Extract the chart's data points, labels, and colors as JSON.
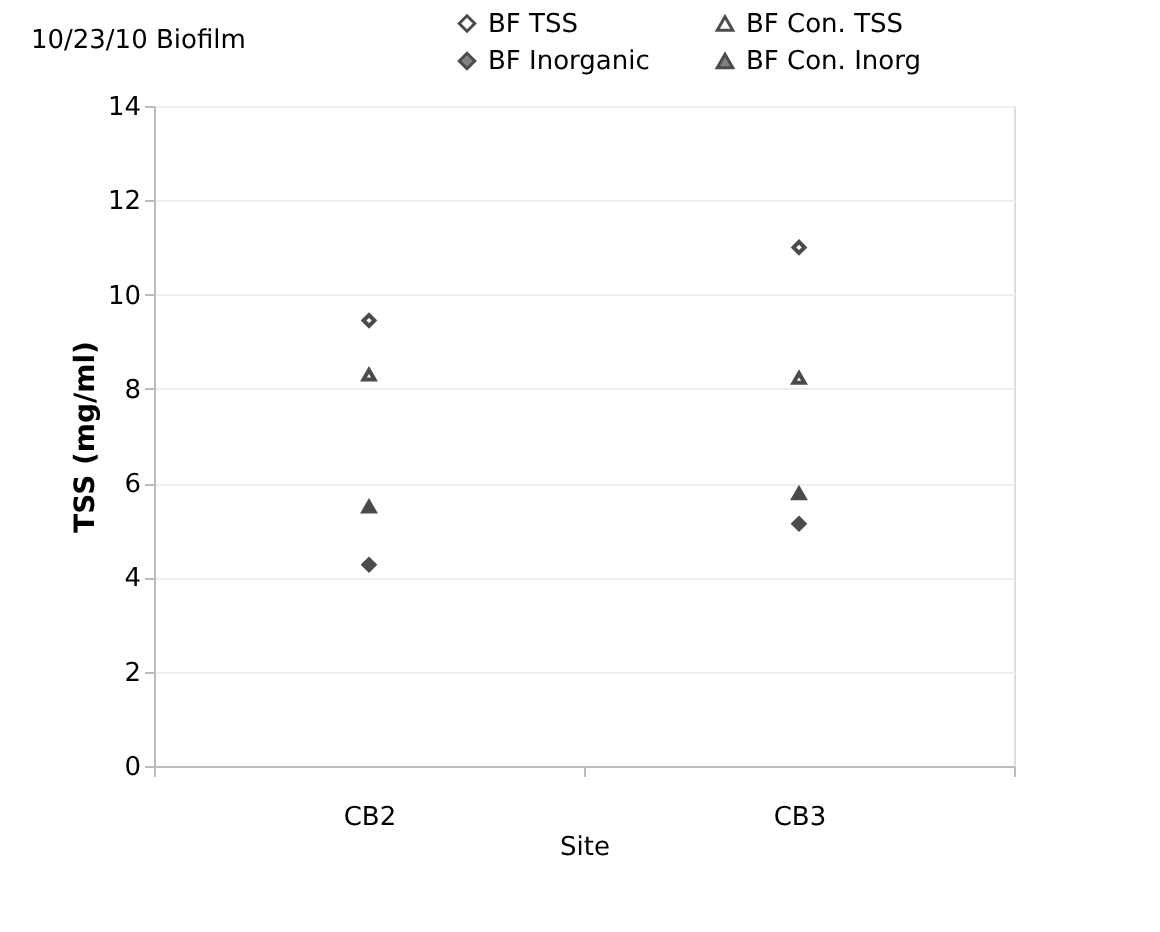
{
  "chart_data": {
    "type": "scatter",
    "title": "10/23/10 Biofilm",
    "xlabel": "Site",
    "ylabel": "TSS (mg/ml)",
    "categories": [
      "CB2",
      "CB3"
    ],
    "series": [
      {
        "name": "BF TSS",
        "color": "#000000",
        "marker": "diamond-open",
        "values": [
          9.45,
          11.0
        ]
      },
      {
        "name": "BF Inorganic",
        "color": "#000000",
        "marker": "diamond",
        "values": [
          4.27,
          5.14
        ]
      },
      {
        "name": "BF Con. TSS",
        "color": "#000000",
        "marker": "triangle-open",
        "values": [
          8.3,
          8.23
        ]
      },
      {
        "name": "BF Con. Inorg",
        "color": "#000000",
        "marker": "triangle",
        "values": [
          5.5,
          5.78
        ]
      }
    ],
    "ylim": [
      0,
      14
    ],
    "yticks": [
      0,
      2,
      4,
      6,
      8,
      10,
      12,
      14
    ],
    "grid": "y",
    "legend": "top right"
  }
}
